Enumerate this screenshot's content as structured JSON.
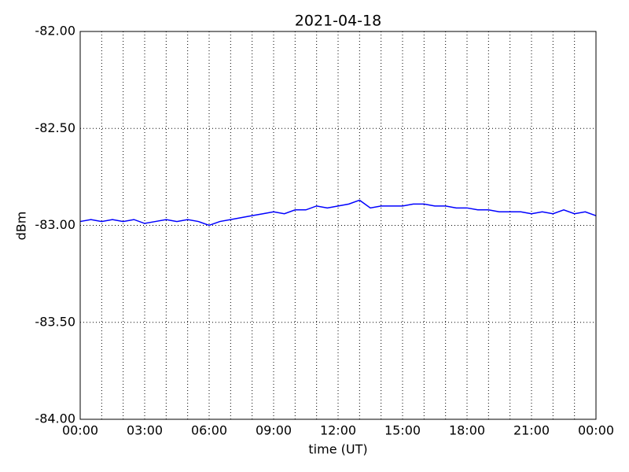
{
  "chart_data": {
    "type": "line",
    "title": "2021-04-18",
    "x_label": "time (UT)",
    "y_label": "dBm",
    "x": [
      0,
      0.5,
      1,
      1.5,
      2,
      2.5,
      3,
      3.5,
      4,
      4.5,
      5,
      5.5,
      6,
      6.5,
      7,
      7.5,
      8,
      8.5,
      9,
      9.5,
      10,
      10.5,
      11,
      11.5,
      12,
      12.5,
      13,
      13.5,
      14,
      14.5,
      15,
      15.5,
      16,
      16.5,
      17,
      17.5,
      18,
      18.5,
      19,
      19.5,
      20,
      20.5,
      21,
      21.5,
      22,
      22.5,
      23,
      23.5,
      24
    ],
    "series": [
      {
        "name": "dBm",
        "color": "#0000ff",
        "values": [
          -82.98,
          -82.97,
          -82.98,
          -82.97,
          -82.98,
          -82.97,
          -82.99,
          -82.98,
          -82.97,
          -82.98,
          -82.97,
          -82.98,
          -83.0,
          -82.98,
          -82.97,
          -82.96,
          -82.95,
          -82.94,
          -82.93,
          -82.94,
          -82.92,
          -82.92,
          -82.9,
          -82.91,
          -82.9,
          -82.89,
          -82.87,
          -82.91,
          -82.9,
          -82.9,
          -82.9,
          -82.89,
          -82.89,
          -82.9,
          -82.9,
          -82.91,
          -82.91,
          -82.92,
          -82.92,
          -82.93,
          -82.93,
          -82.93,
          -82.94,
          -82.93,
          -82.94,
          -82.92,
          -82.94,
          -82.93,
          -82.95
        ]
      }
    ],
    "xlim": [
      0,
      24
    ],
    "xticks": [
      {
        "value": 0,
        "label": "00:00"
      },
      {
        "value": 3,
        "label": "03:00"
      },
      {
        "value": 6,
        "label": "06:00"
      },
      {
        "value": 9,
        "label": "09:00"
      },
      {
        "value": 12,
        "label": "12:00"
      },
      {
        "value": 15,
        "label": "15:00"
      },
      {
        "value": 18,
        "label": "18:00"
      },
      {
        "value": 21,
        "label": "21:00"
      },
      {
        "value": 24,
        "label": "00:00"
      }
    ],
    "x_minor_ticks": [
      1,
      2,
      4,
      5,
      7,
      8,
      10,
      11,
      13,
      14,
      16,
      17,
      19,
      20,
      22,
      23
    ],
    "ylim": [
      -84,
      -82
    ],
    "yticks": [
      {
        "value": -84,
        "label": "-84.00"
      },
      {
        "value": -83.5,
        "label": "-83.50"
      },
      {
        "value": -83,
        "label": "-83.00"
      },
      {
        "value": -82.5,
        "label": "-82.50"
      },
      {
        "value": -82,
        "label": "-82.00"
      }
    ],
    "grid": true
  }
}
